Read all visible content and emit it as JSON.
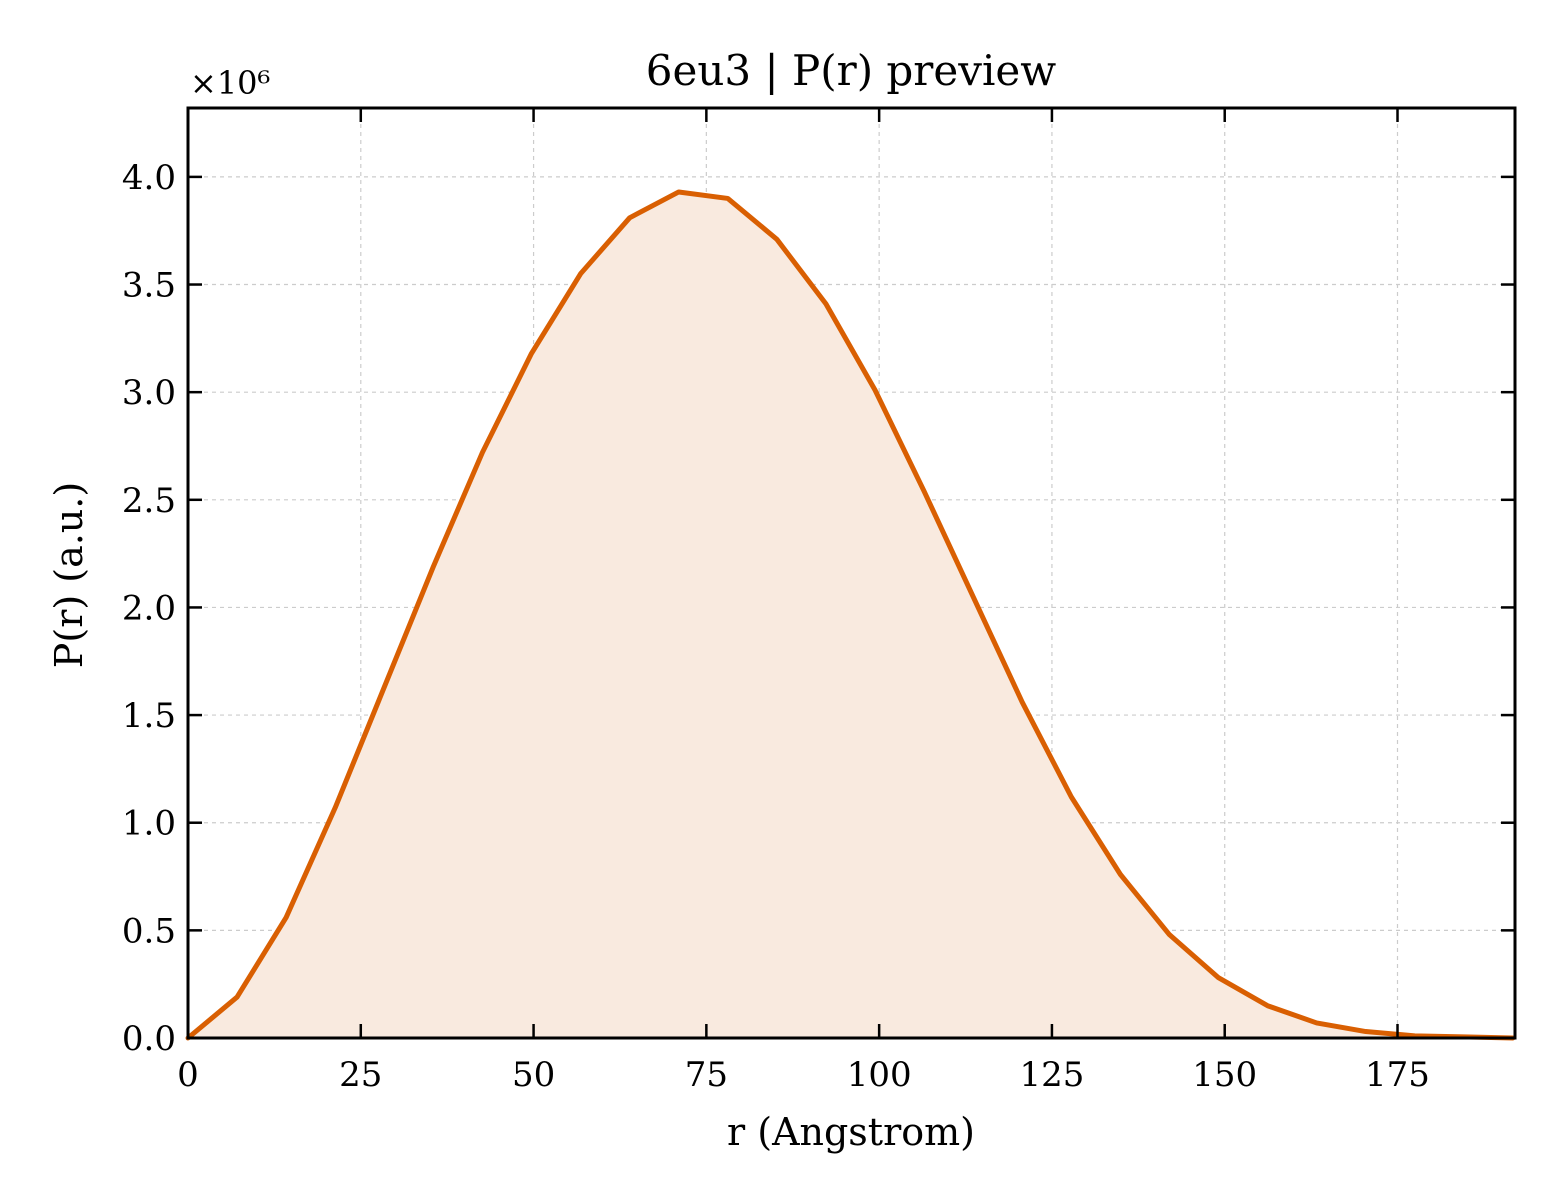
{
  "chart_data": {
    "type": "area",
    "title": "6eu3 | P(r) preview",
    "xlabel": "r (Angstrom)",
    "ylabel": "P(r) (a.u.)",
    "y_multiplier_label": "×10⁶",
    "xlim": [
      0,
      192
    ],
    "ylim": [
      0,
      4.32
    ],
    "y_unit_scale": 1000000,
    "x_ticks": [
      0,
      25,
      50,
      75,
      100,
      125,
      150,
      175
    ],
    "y_ticks": [
      0.0,
      0.5,
      1.0,
      1.5,
      2.0,
      2.5,
      3.0,
      3.5,
      4.0
    ],
    "x_tick_labels": [
      "0",
      "25",
      "50",
      "75",
      "100",
      "125",
      "150",
      "175"
    ],
    "y_tick_labels": [
      "0.0",
      "0.5",
      "1.0",
      "1.5",
      "2.0",
      "2.5",
      "3.0",
      "3.5",
      "4.0"
    ],
    "grid": true,
    "legend": "none",
    "colors": {
      "line": "#d95f02",
      "fill": "#f9eadf",
      "grid": "#cccccc",
      "axes": "#000000"
    },
    "series": [
      {
        "x": [
          0.0,
          7.1,
          14.2,
          21.3,
          28.4,
          35.5,
          42.6,
          49.7,
          56.8,
          63.9,
          71.0,
          78.1,
          85.2,
          92.3,
          99.4,
          106.5,
          113.6,
          120.7,
          127.8,
          134.9,
          142.0,
          149.1,
          156.2,
          163.3,
          170.4,
          177.5,
          184.6,
          191.7
        ],
        "y": [
          0.0,
          0.19,
          0.56,
          1.07,
          1.63,
          2.19,
          2.72,
          3.18,
          3.55,
          3.81,
          3.93,
          3.9,
          3.71,
          3.41,
          3.01,
          2.54,
          2.05,
          1.56,
          1.12,
          0.76,
          0.48,
          0.28,
          0.15,
          0.07,
          0.03,
          0.01,
          0.005,
          0.0
        ]
      }
    ]
  }
}
